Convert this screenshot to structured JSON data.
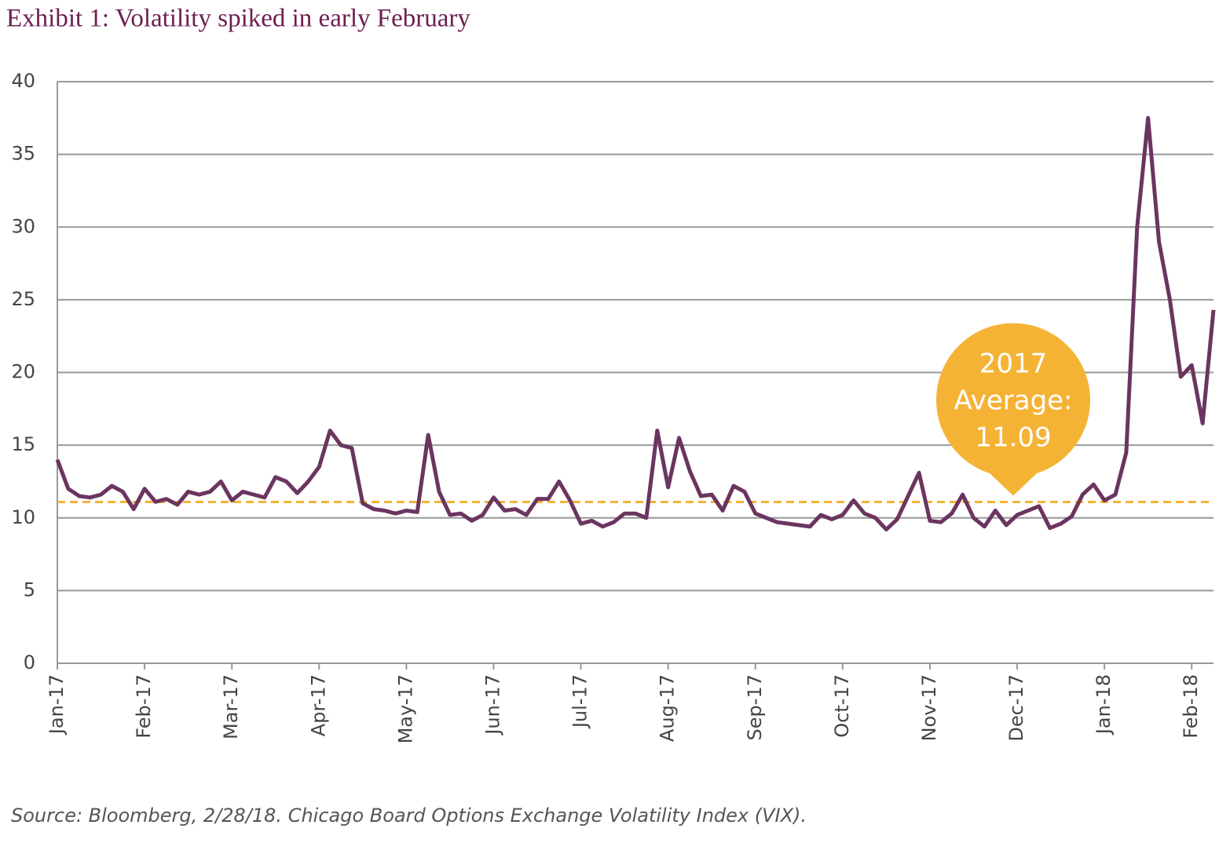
{
  "chart_data": {
    "type": "line",
    "title": "Exhibit 1: Volatility spiked in early February",
    "source": "Source: Bloomberg, 2/28/18. Chicago Board Options Exchange Volatility Index (VIX).",
    "categories": [
      "Jan-17",
      null,
      null,
      null,
      null,
      null,
      null,
      null,
      "Feb-17",
      null,
      null,
      null,
      null,
      null,
      null,
      null,
      "Mar-17",
      null,
      null,
      null,
      null,
      null,
      null,
      null,
      "Apr-17",
      null,
      null,
      null,
      null,
      null,
      null,
      null,
      "May-17",
      null,
      null,
      null,
      null,
      null,
      null,
      null,
      "Jun-17",
      null,
      null,
      null,
      null,
      null,
      null,
      null,
      "Jul-17",
      null,
      null,
      null,
      null,
      null,
      null,
      null,
      "Aug-17",
      null,
      null,
      null,
      null,
      null,
      null,
      null,
      "Sep-17",
      null,
      null,
      null,
      null,
      null,
      null,
      null,
      "Oct-17",
      null,
      null,
      null,
      null,
      null,
      null,
      null,
      "Nov-17",
      null,
      null,
      null,
      null,
      null,
      null,
      null,
      "Dec-17",
      null,
      null,
      null,
      null,
      null,
      null,
      null,
      "Jan-18",
      null,
      null,
      null,
      null,
      null,
      null,
      null,
      "Feb-18",
      null,
      null
    ],
    "values": [
      14,
      12,
      11.5,
      11.4,
      11.6,
      12.2,
      11.8,
      10.6,
      12,
      11.1,
      11.3,
      10.9,
      11.8,
      11.6,
      11.8,
      12.5,
      11.2,
      11.8,
      11.6,
      11.4,
      12.8,
      12.5,
      11.7,
      12.5,
      13.5,
      16,
      15,
      14.8,
      11,
      10.6,
      10.5,
      10.3,
      10.5,
      10.4,
      15.7,
      11.8,
      10.2,
      10.3,
      9.8,
      10.2,
      11.4,
      10.5,
      10.6,
      10.2,
      11.3,
      11.3,
      12.5,
      11.2,
      9.6,
      9.8,
      9.4,
      9.7,
      10.3,
      10.3,
      10,
      16,
      12.1,
      15.5,
      13.2,
      11.5,
      11.6,
      10.5,
      12.2,
      11.8,
      10.3,
      10,
      9.7,
      9.6,
      9.5,
      9.4,
      10.2,
      9.9,
      10.2,
      11.2,
      10.3,
      10,
      9.2,
      9.9,
      11.5,
      13.1,
      9.8,
      9.7,
      10.3,
      11.6,
      10,
      9.4,
      10.5,
      9.5,
      10.2,
      10.5,
      10.8,
      9.3,
      9.6,
      10.1,
      11.6,
      12.3,
      11.2,
      11.6,
      14.5,
      30,
      37.5,
      29,
      25,
      19.7,
      20.5,
      16.5,
      24.3
    ],
    "color": "#6b3560",
    "ylim": [
      0,
      40
    ],
    "yticks": [
      0,
      5,
      10,
      15,
      20,
      25,
      30,
      35,
      40
    ],
    "grid": true,
    "average": {
      "value": 11.09,
      "label_lines": [
        "2017",
        "Average:"
      ],
      "color": "#f5b335"
    }
  }
}
